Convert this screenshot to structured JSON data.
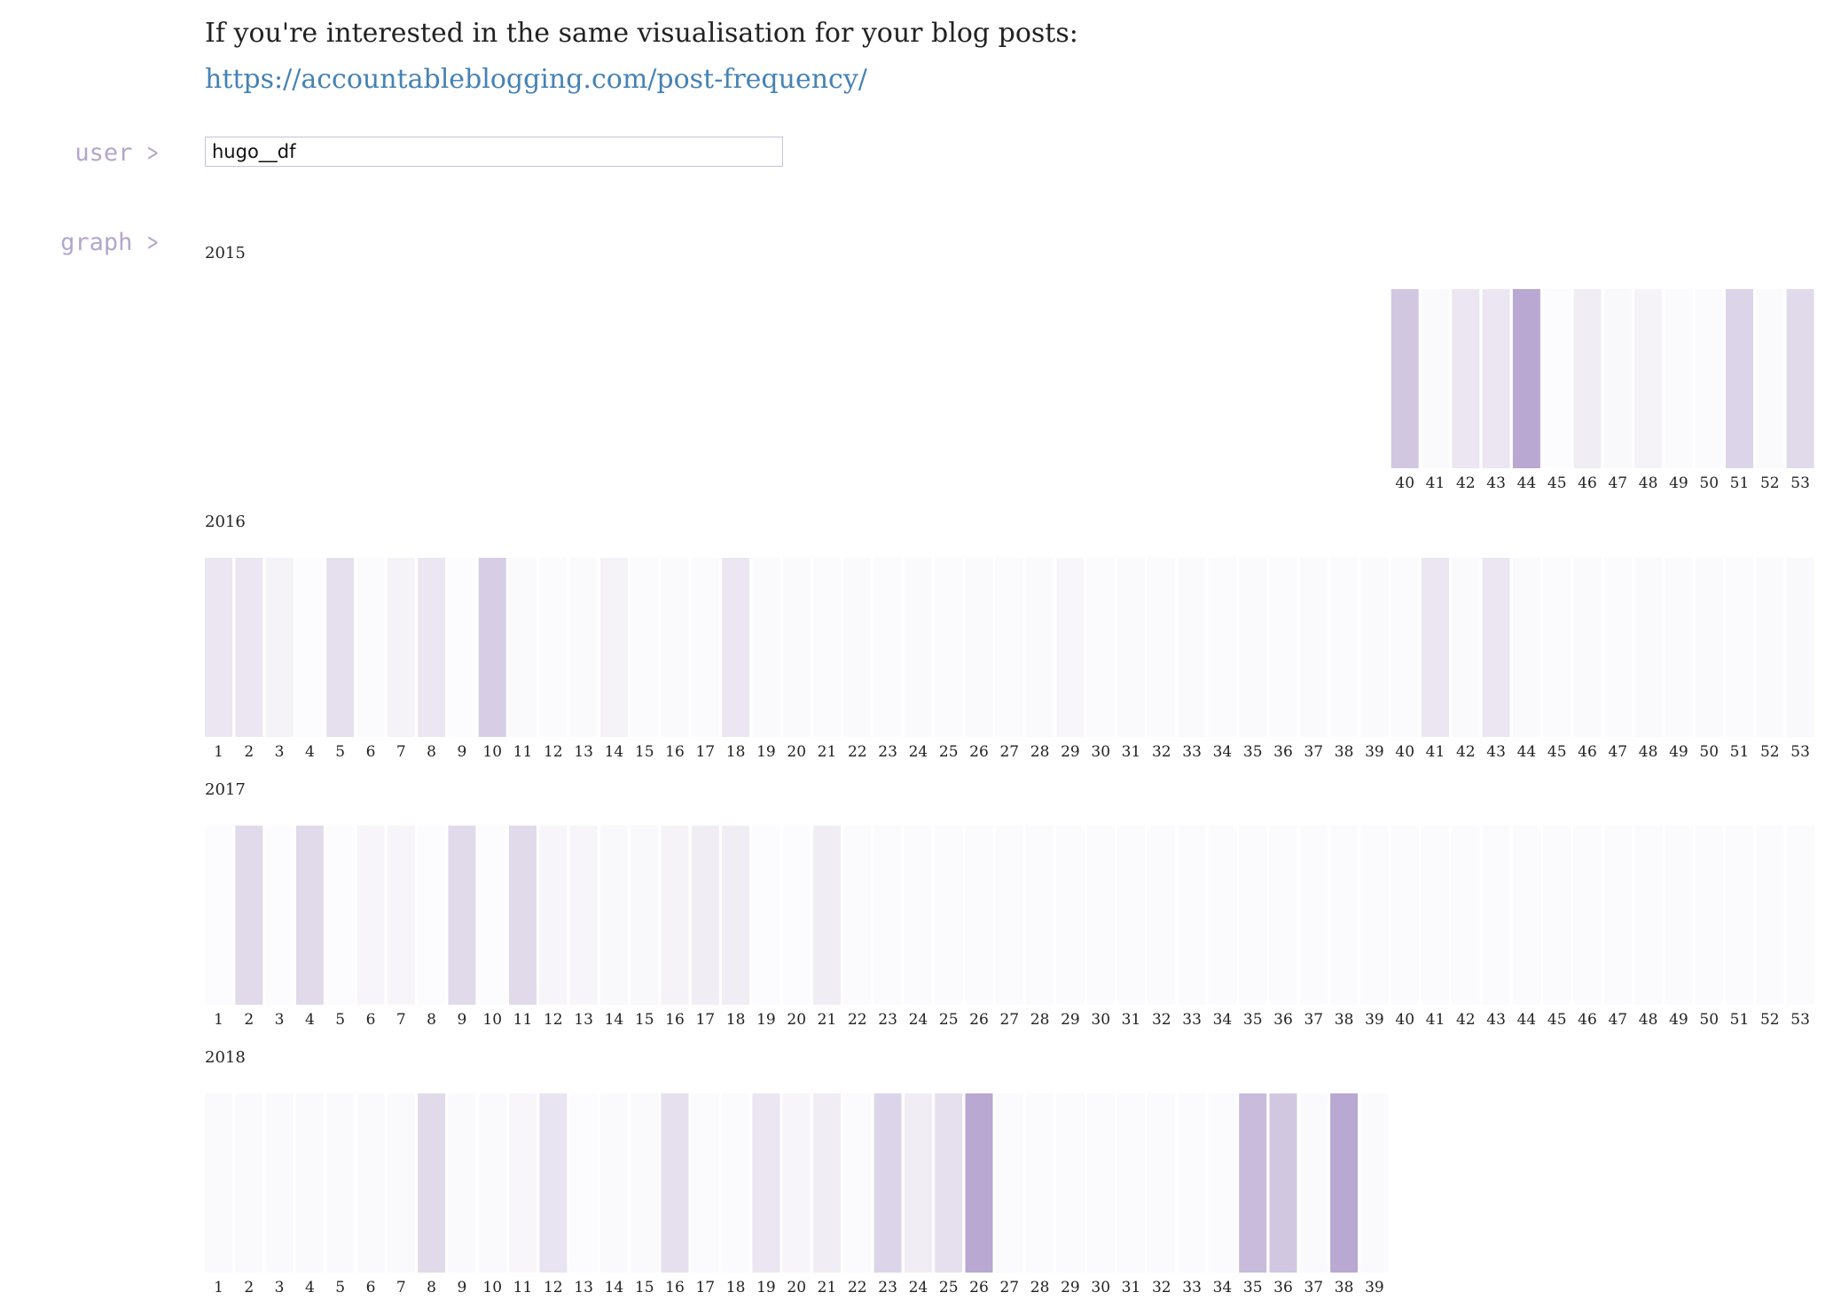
{
  "intro": {
    "text": "If you're interested in the same visualisation for your blog posts:",
    "link": "https://accountableblogging.com/post-frequency/"
  },
  "labels": {
    "user": "user",
    "graph": "graph"
  },
  "user_input": {
    "value": "hugo__df"
  },
  "colors": {
    "bar": "#9b83bd",
    "text": "#222222",
    "link": "#4682b4",
    "label": "#b3a7c9"
  },
  "chart_data": {
    "type": "heatmap",
    "value_scale": "relative intensity 0-1 (posts per week)",
    "years": [
      {
        "year": "2015",
        "weeks": [
          40,
          41,
          42,
          43,
          44,
          45,
          46,
          47,
          48,
          49,
          50,
          51,
          52,
          53
        ],
        "values": [
          0.45,
          0.05,
          0.2,
          0.2,
          0.7,
          0.03,
          0.15,
          0.06,
          0.1,
          0.04,
          0.04,
          0.35,
          0.05,
          0.3
        ]
      },
      {
        "year": "2016",
        "weeks": [
          1,
          2,
          3,
          4,
          5,
          6,
          7,
          8,
          9,
          10,
          11,
          12,
          13,
          14,
          15,
          16,
          17,
          18,
          19,
          20,
          21,
          22,
          23,
          24,
          25,
          26,
          27,
          28,
          29,
          30,
          31,
          32,
          33,
          34,
          35,
          36,
          37,
          38,
          39,
          40,
          41,
          42,
          43,
          44,
          45,
          46,
          47,
          48,
          49,
          50,
          51,
          52,
          53
        ],
        "values": [
          0.2,
          0.2,
          0.1,
          0.02,
          0.25,
          0.04,
          0.1,
          0.2,
          0.03,
          0.4,
          0.05,
          0.04,
          0.05,
          0.1,
          0.04,
          0.05,
          0.04,
          0.2,
          0.05,
          0.05,
          0.04,
          0.05,
          0.04,
          0.05,
          0.04,
          0.05,
          0.04,
          0.05,
          0.07,
          0.04,
          0.05,
          0.04,
          0.05,
          0.04,
          0.05,
          0.04,
          0.05,
          0.04,
          0.05,
          0.04,
          0.2,
          0.05,
          0.2,
          0.05,
          0.04,
          0.05,
          0.04,
          0.05,
          0.04,
          0.05,
          0.04,
          0.05,
          0.06
        ]
      },
      {
        "year": "2017",
        "weeks": [
          1,
          2,
          3,
          4,
          5,
          6,
          7,
          8,
          9,
          10,
          11,
          12,
          13,
          14,
          15,
          16,
          17,
          18,
          19,
          20,
          21,
          22,
          23,
          24,
          25,
          26,
          27,
          28,
          29,
          30,
          31,
          32,
          33,
          34,
          35,
          36,
          37,
          38,
          39,
          40,
          41,
          42,
          43,
          44,
          45,
          46,
          47,
          48,
          49,
          50,
          51,
          52,
          53
        ],
        "values": [
          0.03,
          0.3,
          0.02,
          0.3,
          0.03,
          0.08,
          0.08,
          0.03,
          0.3,
          0.03,
          0.3,
          0.08,
          0.08,
          0.06,
          0.06,
          0.1,
          0.15,
          0.15,
          0.03,
          0.03,
          0.15,
          0.04,
          0.04,
          0.04,
          0.04,
          0.04,
          0.04,
          0.04,
          0.04,
          0.04,
          0.04,
          0.04,
          0.04,
          0.04,
          0.04,
          0.04,
          0.04,
          0.04,
          0.04,
          0.04,
          0.04,
          0.04,
          0.04,
          0.04,
          0.04,
          0.04,
          0.04,
          0.04,
          0.04,
          0.04,
          0.04,
          0.04,
          0.04
        ]
      },
      {
        "year": "2018",
        "weeks": [
          1,
          2,
          3,
          4,
          5,
          6,
          7,
          8,
          9,
          10,
          11,
          12,
          13,
          14,
          15,
          16,
          17,
          18,
          19,
          20,
          21,
          22,
          23,
          24,
          25,
          26,
          27,
          28,
          29,
          30,
          31,
          32,
          33,
          34,
          35,
          36,
          37,
          38,
          39
        ],
        "values": [
          0.05,
          0.05,
          0.05,
          0.05,
          0.05,
          0.05,
          0.05,
          0.3,
          0.05,
          0.05,
          0.07,
          0.22,
          0.03,
          0.05,
          0.05,
          0.25,
          0.04,
          0.04,
          0.2,
          0.08,
          0.15,
          0.04,
          0.35,
          0.15,
          0.25,
          0.7,
          0.04,
          0.04,
          0.04,
          0.04,
          0.04,
          0.04,
          0.04,
          0.04,
          0.55,
          0.45,
          0.05,
          0.7,
          0.05
        ]
      }
    ]
  }
}
